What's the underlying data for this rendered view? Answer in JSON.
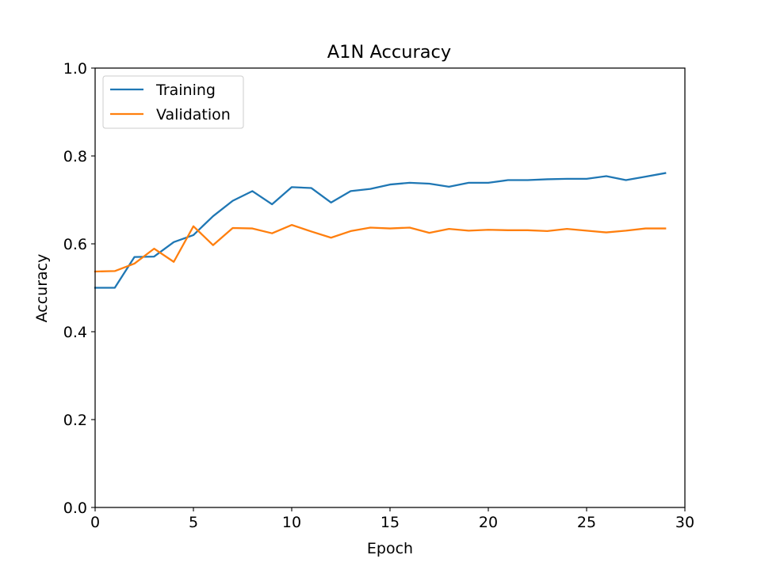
{
  "chart_data": {
    "type": "line",
    "title": "A1N Accuracy",
    "xlabel": "Epoch",
    "ylabel": "Accuracy",
    "xlim": [
      0,
      30
    ],
    "ylim": [
      0.0,
      1.0
    ],
    "xticks": [
      0,
      5,
      10,
      15,
      20,
      25,
      30
    ],
    "yticks": [
      0.0,
      0.2,
      0.4,
      0.6,
      0.8,
      1.0
    ],
    "xtick_labels": [
      "0",
      "5",
      "10",
      "15",
      "20",
      "25",
      "30"
    ],
    "ytick_labels": [
      "0.0",
      "0.2",
      "0.4",
      "0.6",
      "0.8",
      "1.0"
    ],
    "grid": false,
    "legend_position": "top-left",
    "x": [
      0,
      1,
      2,
      3,
      4,
      5,
      6,
      7,
      8,
      9,
      10,
      11,
      12,
      13,
      14,
      15,
      16,
      17,
      18,
      19,
      20,
      21,
      22,
      23,
      24,
      25,
      26,
      27,
      28,
      29
    ],
    "series": [
      {
        "name": "Training",
        "color": "#1f77b4",
        "values": [
          0.5,
          0.5,
          0.57,
          0.571,
          0.604,
          0.62,
          0.663,
          0.698,
          0.72,
          0.69,
          0.729,
          0.727,
          0.694,
          0.72,
          0.725,
          0.735,
          0.739,
          0.737,
          0.73,
          0.739,
          0.739,
          0.745,
          0.745,
          0.747,
          0.748,
          0.748,
          0.754,
          0.745,
          0.753,
          0.761
        ]
      },
      {
        "name": "Validation",
        "color": "#ff7f0e",
        "values": [
          0.537,
          0.538,
          0.555,
          0.589,
          0.559,
          0.64,
          0.597,
          0.636,
          0.635,
          0.624,
          0.643,
          0.628,
          0.614,
          0.629,
          0.637,
          0.635,
          0.637,
          0.625,
          0.634,
          0.63,
          0.632,
          0.631,
          0.631,
          0.629,
          0.634,
          0.63,
          0.626,
          0.63,
          0.635,
          0.635
        ]
      }
    ]
  }
}
